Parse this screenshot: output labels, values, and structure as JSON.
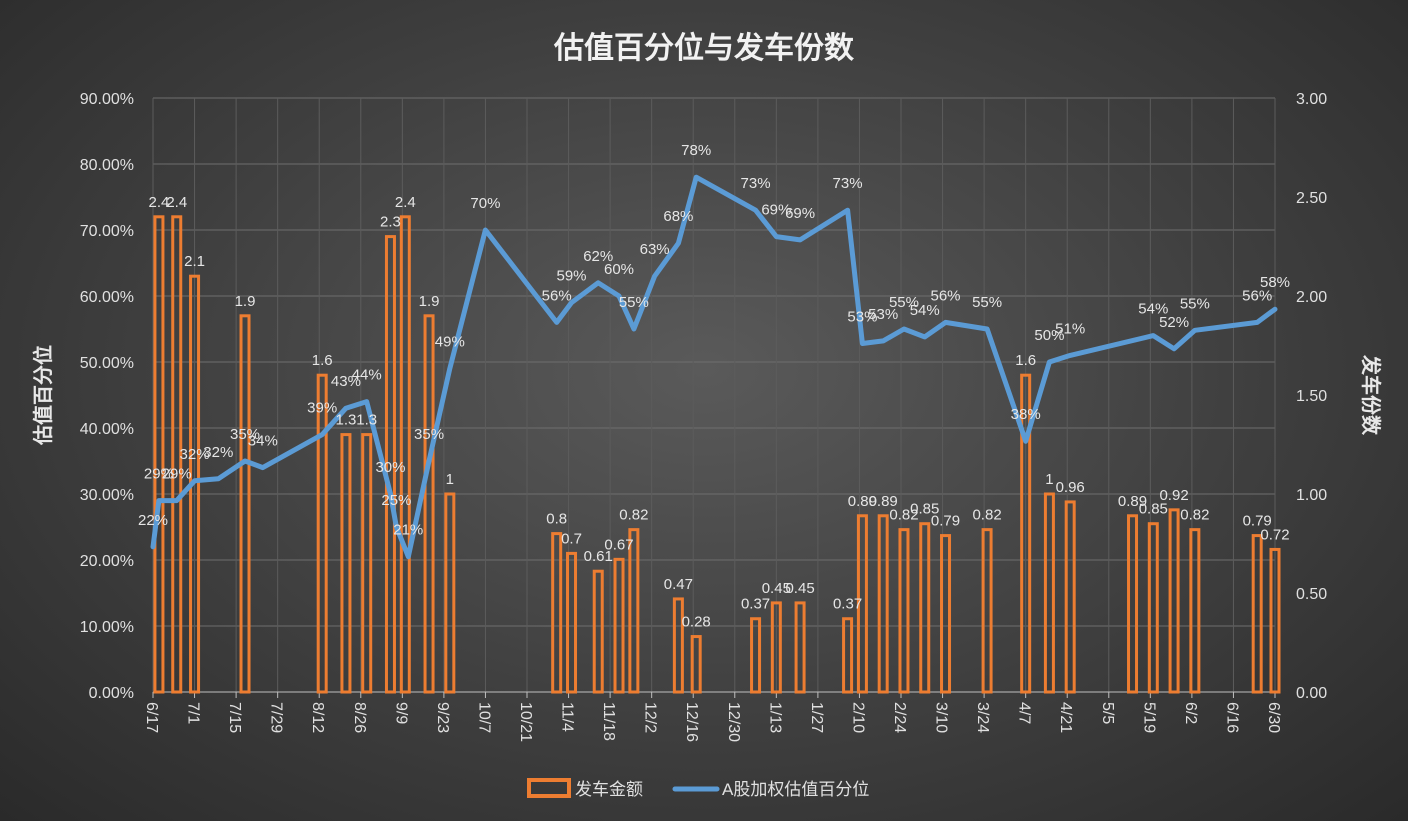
{
  "chart_data": {
    "type": "bar+line",
    "title": "估值百分位与发车份数",
    "ylabel_left": "估值百分位",
    "ylabel_right": "发车份数",
    "ylim_left": [
      0,
      0.9
    ],
    "ylim_right": [
      0,
      3
    ],
    "left_ticks": [
      "0.00%",
      "10.00%",
      "20.00%",
      "30.00%",
      "40.00%",
      "50.00%",
      "60.00%",
      "70.00%",
      "80.00%",
      "90.00%"
    ],
    "right_ticks": [
      "0.00",
      "0.50",
      "1.00",
      "1.50",
      "2.00",
      "2.50",
      "3.00"
    ],
    "x_range_days": [
      0,
      378
    ],
    "x_ticks": [
      {
        "label": "6/17",
        "day": 0
      },
      {
        "label": "7/1",
        "day": 14
      },
      {
        "label": "7/15",
        "day": 28
      },
      {
        "label": "7/29",
        "day": 42
      },
      {
        "label": "8/12",
        "day": 56
      },
      {
        "label": "8/26",
        "day": 70
      },
      {
        "label": "9/9",
        "day": 84
      },
      {
        "label": "9/23",
        "day": 98
      },
      {
        "label": "10/7",
        "day": 112
      },
      {
        "label": "10/21",
        "day": 126
      },
      {
        "label": "11/4",
        "day": 140
      },
      {
        "label": "11/18",
        "day": 154
      },
      {
        "label": "12/2",
        "day": 168
      },
      {
        "label": "12/16",
        "day": 182
      },
      {
        "label": "12/30",
        "day": 196
      },
      {
        "label": "1/13",
        "day": 210
      },
      {
        "label": "1/27",
        "day": 224
      },
      {
        "label": "2/10",
        "day": 238
      },
      {
        "label": "2/24",
        "day": 252
      },
      {
        "label": "3/10",
        "day": 266
      },
      {
        "label": "3/24",
        "day": 280
      },
      {
        "label": "4/7",
        "day": 294
      },
      {
        "label": "4/21",
        "day": 308
      },
      {
        "label": "5/5",
        "day": 322
      },
      {
        "label": "5/19",
        "day": 336
      },
      {
        "label": "6/2",
        "day": 350
      },
      {
        "label": "6/16",
        "day": 364
      },
      {
        "label": "6/30",
        "day": 378
      }
    ],
    "legend": [
      "发车金额",
      "A股加权估值百分位"
    ],
    "colors": {
      "bar": "#ed7d31",
      "line": "#5b9bd5"
    },
    "bars": [
      {
        "day": 2,
        "value": 2.4,
        "label": "2.4"
      },
      {
        "day": 8,
        "value": 2.4,
        "label": "2.4"
      },
      {
        "day": 14,
        "value": 2.1,
        "label": "2.1"
      },
      {
        "day": 31,
        "value": 1.9,
        "label": "1.9"
      },
      {
        "day": 57,
        "value": 1.6,
        "label": "1.6"
      },
      {
        "day": 65,
        "value": 1.3,
        "label": "1.3"
      },
      {
        "day": 72,
        "value": 1.3,
        "label": "1.3"
      },
      {
        "day": 80,
        "value": 2.3,
        "label": "2.3"
      },
      {
        "day": 85,
        "value": 2.4,
        "label": "2.4"
      },
      {
        "day": 93,
        "value": 1.9,
        "label": "1.9"
      },
      {
        "day": 100,
        "value": 1.0,
        "label": "1"
      },
      {
        "day": 136,
        "value": 0.8,
        "label": "0.8"
      },
      {
        "day": 141,
        "value": 0.7,
        "label": "0.7"
      },
      {
        "day": 150,
        "value": 0.61,
        "label": "0.61"
      },
      {
        "day": 157,
        "value": 0.67,
        "label": "0.67"
      },
      {
        "day": 162,
        "value": 0.82,
        "label": "0.82"
      },
      {
        "day": 177,
        "value": 0.47,
        "label": "0.47"
      },
      {
        "day": 183,
        "value": 0.28,
        "label": "0.28"
      },
      {
        "day": 203,
        "value": 0.37,
        "label": "0.37"
      },
      {
        "day": 210,
        "value": 0.45,
        "label": "0.45"
      },
      {
        "day": 218,
        "value": 0.45,
        "label": "0.45"
      },
      {
        "day": 234,
        "value": 0.37,
        "label": "0.37"
      },
      {
        "day": 239,
        "value": 0.89,
        "label": "0.89"
      },
      {
        "day": 246,
        "value": 0.89,
        "label": "0.89"
      },
      {
        "day": 253,
        "value": 0.82,
        "label": "0.82"
      },
      {
        "day": 260,
        "value": 0.85,
        "label": "0.85"
      },
      {
        "day": 267,
        "value": 0.79,
        "label": "0.79"
      },
      {
        "day": 281,
        "value": 0.82,
        "label": "0.82"
      },
      {
        "day": 294,
        "value": 1.6,
        "label": "1.6"
      },
      {
        "day": 302,
        "value": 1.0,
        "label": "1"
      },
      {
        "day": 309,
        "value": 0.96,
        "label": "0.96"
      },
      {
        "day": 330,
        "value": 0.89,
        "label": "0.89"
      },
      {
        "day": 337,
        "value": 0.85,
        "label": "0.85"
      },
      {
        "day": 344,
        "value": 0.92,
        "label": "0.92"
      },
      {
        "day": 351,
        "value": 0.82,
        "label": "0.82"
      },
      {
        "day": 372,
        "value": 0.79,
        "label": "0.79"
      },
      {
        "day": 378,
        "value": 0.72,
        "label": "0.72"
      }
    ],
    "line": [
      {
        "day": 0,
        "value": 0.22,
        "label": "22%"
      },
      {
        "day": 2,
        "value": 0.29,
        "label": "29%"
      },
      {
        "day": 8,
        "value": 0.29,
        "label": "29%"
      },
      {
        "day": 14,
        "value": 0.32,
        "label": "32%"
      },
      {
        "day": 22,
        "value": 0.323,
        "label": "32%"
      },
      {
        "day": 31,
        "value": 0.35,
        "label": "35%"
      },
      {
        "day": 37,
        "value": 0.34,
        "label": "34%"
      },
      {
        "day": 57,
        "value": 0.39,
        "label": "39%"
      },
      {
        "day": 65,
        "value": 0.43,
        "label": "43%"
      },
      {
        "day": 72,
        "value": 0.44,
        "label": "44%"
      },
      {
        "day": 80,
        "value": 0.3,
        "label": "30%"
      },
      {
        "day": 82,
        "value": 0.25,
        "label": "25%"
      },
      {
        "day": 86,
        "value": 0.205,
        "label": "21%"
      },
      {
        "day": 93,
        "value": 0.35,
        "label": "35%"
      },
      {
        "day": 100,
        "value": 0.49,
        "label": "49%"
      },
      {
        "day": 112,
        "value": 0.7,
        "label": "70%"
      },
      {
        "day": 136,
        "value": 0.56,
        "label": "56%"
      },
      {
        "day": 141,
        "value": 0.59,
        "label": "59%"
      },
      {
        "day": 150,
        "value": 0.62,
        "label": "62%"
      },
      {
        "day": 157,
        "value": 0.6,
        "label": "60%"
      },
      {
        "day": 162,
        "value": 0.55,
        "label": "55%"
      },
      {
        "day": 169,
        "value": 0.63,
        "label": "63%"
      },
      {
        "day": 177,
        "value": 0.68,
        "label": "68%"
      },
      {
        "day": 183,
        "value": 0.78,
        "label": "78%"
      },
      {
        "day": 203,
        "value": 0.73,
        "label": "73%"
      },
      {
        "day": 210,
        "value": 0.69,
        "label": "69%"
      },
      {
        "day": 218,
        "value": 0.685,
        "label": "69%"
      },
      {
        "day": 234,
        "value": 0.73,
        "label": "73%"
      },
      {
        "day": 239,
        "value": 0.528,
        "label": "53%"
      },
      {
        "day": 246,
        "value": 0.532,
        "label": "53%"
      },
      {
        "day": 253,
        "value": 0.55,
        "label": "55%"
      },
      {
        "day": 260,
        "value": 0.538,
        "label": "54%"
      },
      {
        "day": 267,
        "value": 0.56,
        "label": "56%"
      },
      {
        "day": 281,
        "value": 0.55,
        "label": "55%"
      },
      {
        "day": 294,
        "value": 0.38,
        "label": "38%"
      },
      {
        "day": 302,
        "value": 0.5,
        "label": "50%"
      },
      {
        "day": 309,
        "value": 0.51,
        "label": "51%"
      },
      {
        "day": 337,
        "value": 0.54,
        "label": "54%"
      },
      {
        "day": 344,
        "value": 0.52,
        "label": "52%"
      },
      {
        "day": 351,
        "value": 0.548,
        "label": "55%"
      },
      {
        "day": 372,
        "value": 0.56,
        "label": "56%"
      },
      {
        "day": 378,
        "value": 0.58,
        "label": "58%"
      }
    ]
  }
}
